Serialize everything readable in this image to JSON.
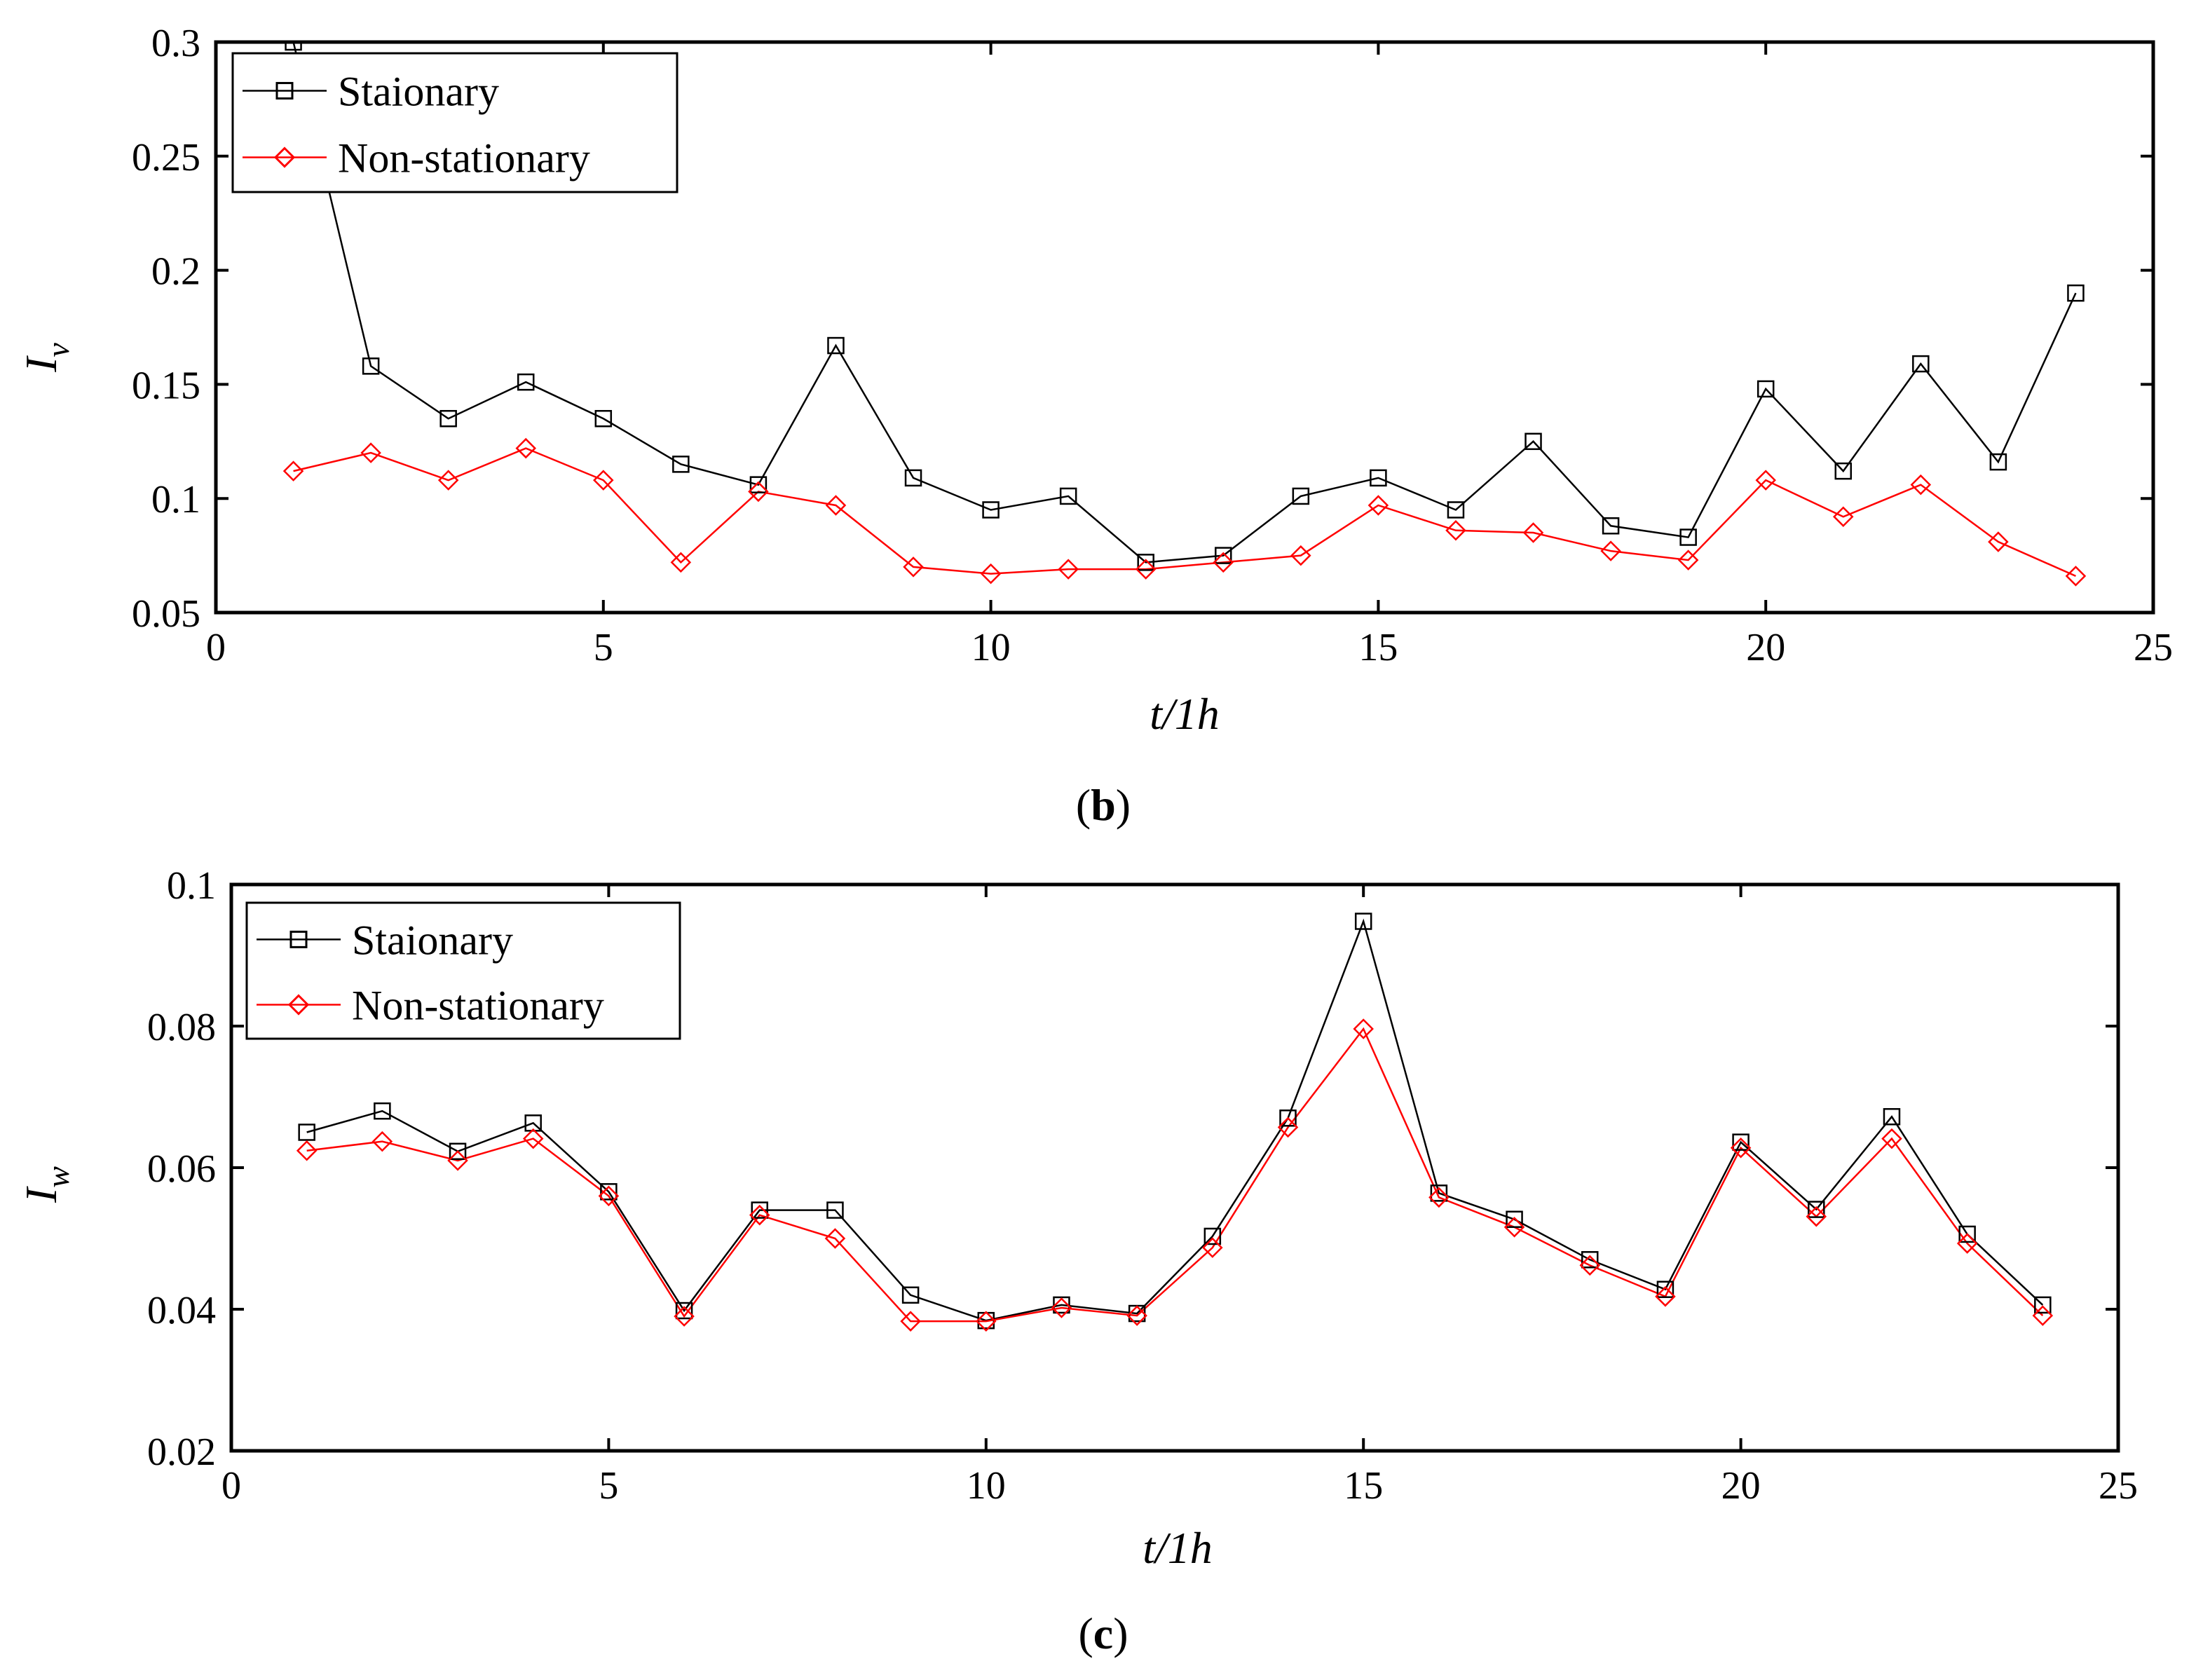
{
  "colors": {
    "stationary": "#000000",
    "non_stationary": "#ff0000",
    "axes": "#000000",
    "background": "#ffffff"
  },
  "chart_data": [
    {
      "id": "b",
      "type": "line",
      "caption_letter": "b",
      "xlabel": "t/1h",
      "ylabel_base": "I",
      "ylabel_sub": "v",
      "xlim": [
        0,
        25
      ],
      "ylim": [
        0.05,
        0.3
      ],
      "xticks": [
        "0",
        "5",
        "10",
        "15",
        "20",
        "25"
      ],
      "xtick_values": [
        0,
        5,
        10,
        15,
        20,
        25
      ],
      "yticks": [
        "0.05",
        "0.1",
        "0.15",
        "0.2",
        "0.25",
        "0.3"
      ],
      "ytick_values": [
        0.05,
        0.1,
        0.15,
        0.2,
        0.25,
        0.3
      ],
      "legend_position": "top-left",
      "grid": false,
      "x": [
        1,
        2,
        3,
        4,
        5,
        6,
        7,
        8,
        9,
        10,
        11,
        12,
        13,
        14,
        15,
        16,
        17,
        18,
        19,
        20,
        21,
        22,
        23,
        24
      ],
      "series": [
        {
          "name": "Staionary",
          "marker": "square",
          "color": "#000000",
          "values": [
            0.3,
            0.158,
            0.135,
            0.151,
            0.135,
            0.115,
            0.106,
            0.167,
            0.109,
            0.095,
            0.101,
            0.072,
            0.075,
            0.101,
            0.109,
            0.095,
            0.125,
            0.088,
            0.083,
            0.148,
            0.112,
            0.159,
            0.116,
            0.19
          ]
        },
        {
          "name": "Non-stationary",
          "marker": "diamond",
          "color": "#ff0000",
          "values": [
            0.112,
            0.12,
            0.108,
            0.122,
            0.108,
            0.072,
            0.103,
            0.097,
            0.07,
            0.067,
            0.069,
            0.069,
            0.072,
            0.075,
            0.097,
            0.086,
            0.085,
            0.077,
            0.073,
            0.108,
            0.092,
            0.106,
            0.081,
            0.066
          ]
        }
      ]
    },
    {
      "id": "c",
      "type": "line",
      "caption_letter": "c",
      "xlabel": "t/1h",
      "ylabel_base": "I",
      "ylabel_sub": "w",
      "xlim": [
        0,
        25
      ],
      "ylim": [
        0.02,
        0.1
      ],
      "xticks": [
        "0",
        "5",
        "10",
        "15",
        "20",
        "25"
      ],
      "xtick_values": [
        0,
        5,
        10,
        15,
        20,
        25
      ],
      "yticks": [
        "0.02",
        "0.04",
        "0.06",
        "0.08",
        "0.1"
      ],
      "ytick_values": [
        0.02,
        0.04,
        0.06,
        0.08,
        0.1
      ],
      "legend_position": "top-left",
      "grid": false,
      "x": [
        1,
        2,
        3,
        4,
        5,
        6,
        7,
        8,
        9,
        10,
        11,
        12,
        13,
        14,
        15,
        16,
        17,
        18,
        19,
        20,
        21,
        22,
        23,
        24
      ],
      "series": [
        {
          "name": "Staionary",
          "marker": "square",
          "color": "#000000",
          "values": [
            0.065,
            0.068,
            0.0623,
            0.0663,
            0.0566,
            0.0398,
            0.054,
            0.054,
            0.042,
            0.0384,
            0.0406,
            0.0394,
            0.0503,
            0.067,
            0.0948,
            0.0564,
            0.0527,
            0.047,
            0.0428,
            0.0636,
            0.0541,
            0.0672,
            0.0506,
            0.0406
          ]
        },
        {
          "name": "Non-stationary",
          "marker": "diamond",
          "color": "#ff0000",
          "values": [
            0.0624,
            0.0637,
            0.061,
            0.0641,
            0.056,
            0.039,
            0.0533,
            0.05,
            0.0383,
            0.0383,
            0.0402,
            0.0391,
            0.0487,
            0.0657,
            0.0796,
            0.0558,
            0.0516,
            0.0462,
            0.0418,
            0.0628,
            0.0531,
            0.0641,
            0.0493,
            0.0391
          ]
        }
      ]
    }
  ]
}
